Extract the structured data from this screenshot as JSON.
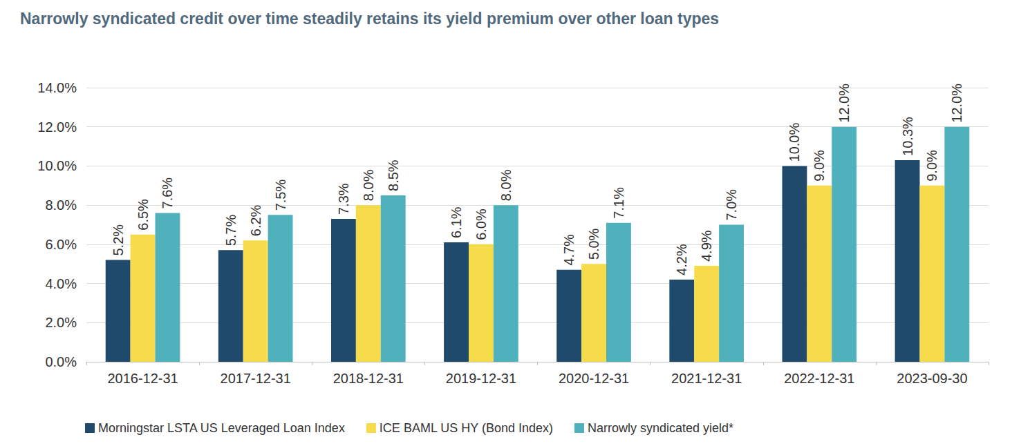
{
  "chart_data": {
    "type": "bar",
    "title": "Narrowly syndicated credit over time steadily retains its yield premium over other loan types",
    "categories": [
      "2016-12-31",
      "2017-12-31",
      "2018-12-31",
      "2019-12-31",
      "2020-12-31",
      "2021-12-31",
      "2022-12-31",
      "2023-09-30"
    ],
    "series": [
      {
        "name": "Morningstar LSTA US Leveraged Loan Index",
        "color": "#1f4a6b",
        "values": [
          5.2,
          5.7,
          7.3,
          6.1,
          4.7,
          4.2,
          10.0,
          10.3
        ],
        "value_labels": [
          "5.2%",
          "5.7%",
          "7.3%",
          "6.1%",
          "4.7%",
          "4.2%",
          "10.0%",
          "10.3%"
        ]
      },
      {
        "name": "ICE BAML US HY (Bond Index)",
        "color": "#f6dc4a",
        "values": [
          6.5,
          6.2,
          8.0,
          6.0,
          5.0,
          4.9,
          9.0,
          9.0
        ],
        "value_labels": [
          "6.5%",
          "6.2%",
          "8.0%",
          "6.0%",
          "5.0%",
          "4.9%",
          "9.0%",
          "9.0%"
        ]
      },
      {
        "name": "Narrowly syndicated yield*",
        "color": "#4eb1bc",
        "values": [
          7.6,
          7.5,
          8.5,
          8.0,
          7.1,
          7.0,
          12.0,
          12.0
        ],
        "value_labels": [
          "7.6%",
          "7.5%",
          "8.5%",
          "8.0%",
          "7.1%",
          "7.0%",
          "12.0%",
          "12.0%"
        ]
      }
    ],
    "ylim": [
      0,
      14
    ],
    "yticks": [
      {
        "value": 0,
        "label": "0.0%"
      },
      {
        "value": 2,
        "label": "2.0%"
      },
      {
        "value": 4,
        "label": "4.0%"
      },
      {
        "value": 6,
        "label": "6.0%"
      },
      {
        "value": 8,
        "label": "8.0%"
      },
      {
        "value": 10,
        "label": "10.0%"
      },
      {
        "value": 12,
        "label": "12.0%"
      },
      {
        "value": 14,
        "label": "14.0%"
      }
    ],
    "grid": true,
    "data_labels": true,
    "legend": "bottom"
  }
}
